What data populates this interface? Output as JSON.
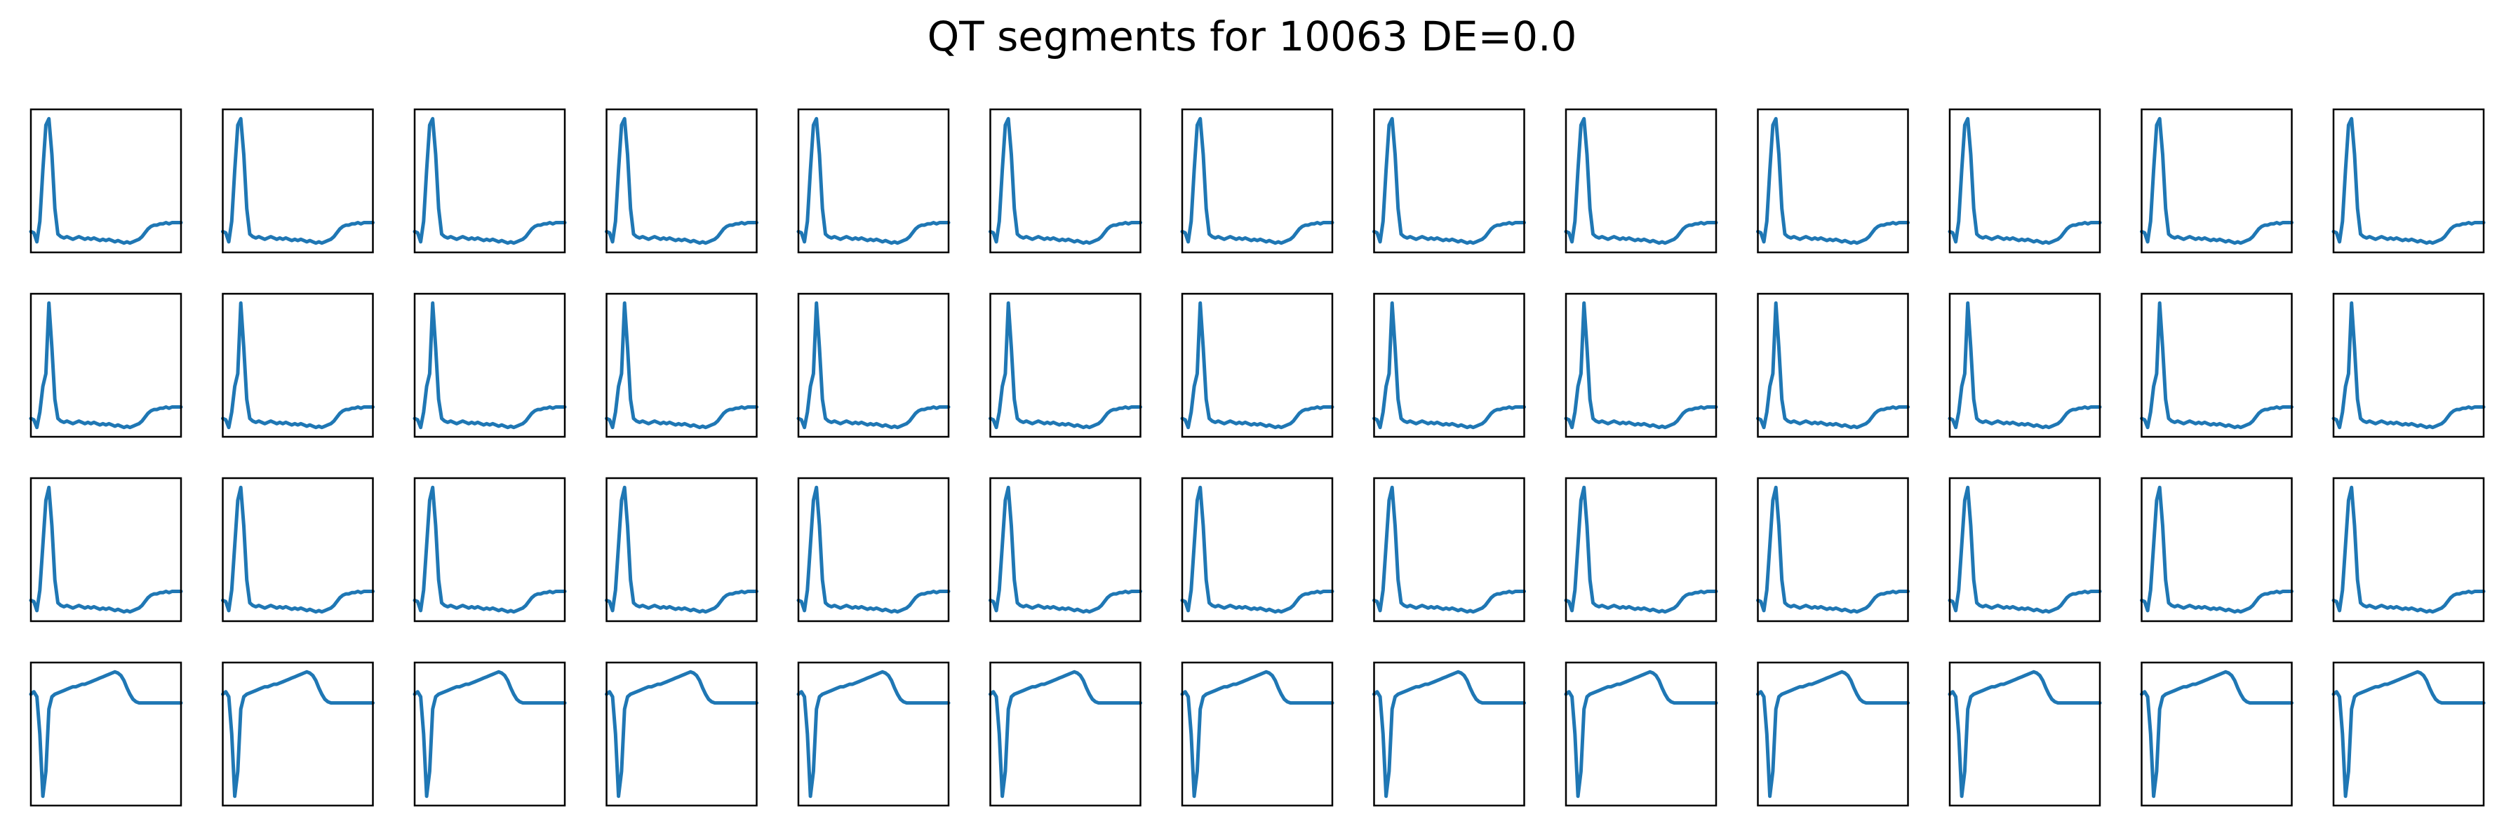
{
  "title": "QT segments for 10063 DE=0.0",
  "chart_data": {
    "type": "line",
    "title": "QT segments for 10063 DE=0.0",
    "layout": {
      "rows": 4,
      "cols": 13
    },
    "axes_ticks_shown": false,
    "grid": false,
    "line_color": "#1f77b4",
    "frame_color": "#000000",
    "x": [
      0,
      0.02,
      0.04,
      0.06,
      0.08,
      0.1,
      0.12,
      0.14,
      0.16,
      0.18,
      0.2,
      0.22,
      0.24,
      0.26,
      0.28,
      0.3,
      0.32,
      0.34,
      0.36,
      0.38,
      0.4,
      0.42,
      0.44,
      0.46,
      0.48,
      0.5,
      0.52,
      0.54,
      0.56,
      0.58,
      0.6,
      0.62,
      0.64,
      0.66,
      0.68,
      0.7,
      0.72,
      0.74,
      0.76,
      0.78,
      0.8,
      0.82,
      0.84,
      0.86,
      0.88,
      0.9,
      0.92,
      0.94,
      0.96,
      0.98,
      1
    ],
    "row_templates": [
      {
        "row": 1,
        "values": [
          0.12,
          0.11,
          0.04,
          0.2,
          0.6,
          0.95,
          1.0,
          0.72,
          0.3,
          0.1,
          0.08,
          0.07,
          0.08,
          0.07,
          0.06,
          0.07,
          0.08,
          0.07,
          0.06,
          0.07,
          0.06,
          0.07,
          0.06,
          0.05,
          0.06,
          0.05,
          0.06,
          0.05,
          0.04,
          0.05,
          0.04,
          0.03,
          0.04,
          0.03,
          0.04,
          0.05,
          0.06,
          0.08,
          0.11,
          0.14,
          0.16,
          0.17,
          0.17,
          0.18,
          0.18,
          0.19,
          0.18,
          0.19,
          0.19,
          0.19,
          0.19
        ]
      },
      {
        "row": 2,
        "values": [
          0.1,
          0.09,
          0.03,
          0.15,
          0.35,
          0.45,
          1.0,
          0.65,
          0.25,
          0.1,
          0.08,
          0.07,
          0.08,
          0.07,
          0.06,
          0.07,
          0.08,
          0.07,
          0.06,
          0.07,
          0.06,
          0.07,
          0.06,
          0.05,
          0.06,
          0.05,
          0.06,
          0.05,
          0.04,
          0.05,
          0.04,
          0.03,
          0.04,
          0.03,
          0.04,
          0.05,
          0.06,
          0.08,
          0.11,
          0.14,
          0.16,
          0.17,
          0.17,
          0.18,
          0.18,
          0.19,
          0.18,
          0.19,
          0.19,
          0.19,
          0.19
        ]
      },
      {
        "row": 3,
        "values": [
          0.12,
          0.11,
          0.04,
          0.2,
          0.55,
          0.9,
          1.0,
          0.7,
          0.28,
          0.1,
          0.08,
          0.07,
          0.08,
          0.07,
          0.06,
          0.07,
          0.08,
          0.07,
          0.06,
          0.07,
          0.06,
          0.07,
          0.06,
          0.05,
          0.06,
          0.05,
          0.06,
          0.05,
          0.04,
          0.05,
          0.04,
          0.03,
          0.04,
          0.03,
          0.04,
          0.05,
          0.06,
          0.08,
          0.11,
          0.14,
          0.16,
          0.17,
          0.17,
          0.18,
          0.18,
          0.19,
          0.18,
          0.19,
          0.19,
          0.19,
          0.19
        ]
      },
      {
        "row": 4,
        "values": [
          0.82,
          0.84,
          0.8,
          0.5,
          0.0,
          0.2,
          0.7,
          0.8,
          0.82,
          0.83,
          0.84,
          0.85,
          0.86,
          0.87,
          0.88,
          0.88,
          0.89,
          0.9,
          0.9,
          0.91,
          0.92,
          0.93,
          0.94,
          0.95,
          0.96,
          0.97,
          0.98,
          0.99,
          1.0,
          0.99,
          0.97,
          0.93,
          0.87,
          0.82,
          0.78,
          0.76,
          0.75,
          0.75,
          0.75,
          0.75,
          0.75,
          0.75,
          0.75,
          0.75,
          0.75,
          0.75,
          0.75,
          0.75,
          0.75,
          0.75,
          0.75
        ]
      }
    ]
  }
}
